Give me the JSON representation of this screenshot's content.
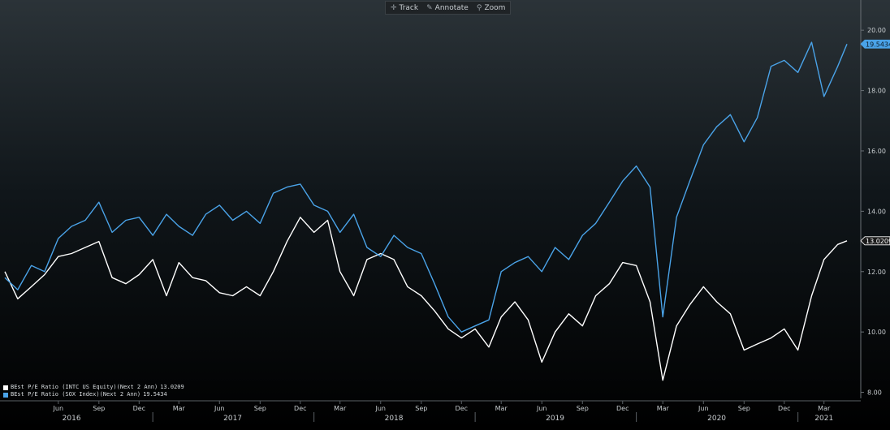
{
  "toolbar": {
    "track_label": "Track",
    "annotate_label": "Annotate",
    "zoom_label": "Zoom"
  },
  "colors": {
    "intc": "#ffffff",
    "sox": "#4aa3e8",
    "background_top": "#2b3338",
    "background_bottom": "#000000"
  },
  "chart_data": {
    "type": "line",
    "title": "",
    "xlabel": "",
    "ylabel": "",
    "ylim": [
      7.8,
      21.0
    ],
    "y_ticks": [
      "20.00",
      "18.00",
      "16.00",
      "14.00",
      "12.00",
      "10.00",
      "8.00"
    ],
    "x_month_ticks": [
      "Jun",
      "Sep",
      "Dec",
      "Mar",
      "Jun",
      "Sep",
      "Dec",
      "Mar",
      "Jun",
      "Sep",
      "Dec",
      "Mar",
      "Jun",
      "Sep",
      "Dec",
      "Mar",
      "Jun",
      "Sep",
      "Dec",
      "Mar"
    ],
    "x_year_labels": [
      "2016",
      "2017",
      "2018",
      "2019",
      "2020",
      "2021"
    ],
    "legend_position": "bottom-left",
    "grid": false,
    "series": [
      {
        "name": "BEst P/E Ratio (INTC US Equity)(Next 2 Ann)",
        "last_value": "13.0209",
        "color": "#ffffff",
        "points": [
          [
            "2016-02-01",
            12.0
          ],
          [
            "2016-03-01",
            11.1
          ],
          [
            "2016-04-01",
            11.5
          ],
          [
            "2016-05-01",
            11.9
          ],
          [
            "2016-06-01",
            12.5
          ],
          [
            "2016-07-01",
            12.6
          ],
          [
            "2016-08-01",
            12.8
          ],
          [
            "2016-09-01",
            13.0
          ],
          [
            "2016-10-01",
            11.8
          ],
          [
            "2016-11-01",
            11.6
          ],
          [
            "2016-12-01",
            11.9
          ],
          [
            "2017-01-01",
            12.4
          ],
          [
            "2017-02-01",
            11.2
          ],
          [
            "2017-03-01",
            12.3
          ],
          [
            "2017-04-01",
            11.8
          ],
          [
            "2017-05-01",
            11.7
          ],
          [
            "2017-06-01",
            11.3
          ],
          [
            "2017-07-01",
            11.2
          ],
          [
            "2017-08-01",
            11.5
          ],
          [
            "2017-09-01",
            11.2
          ],
          [
            "2017-10-01",
            12.0
          ],
          [
            "2017-11-01",
            13.0
          ],
          [
            "2017-12-01",
            13.8
          ],
          [
            "2018-01-01",
            13.3
          ],
          [
            "2018-02-01",
            13.7
          ],
          [
            "2018-03-01",
            12.0
          ],
          [
            "2018-04-01",
            11.2
          ],
          [
            "2018-05-01",
            12.4
          ],
          [
            "2018-06-01",
            12.6
          ],
          [
            "2018-07-01",
            12.4
          ],
          [
            "2018-08-01",
            11.5
          ],
          [
            "2018-09-01",
            11.2
          ],
          [
            "2018-10-01",
            10.7
          ],
          [
            "2018-11-01",
            10.1
          ],
          [
            "2018-12-01",
            9.8
          ],
          [
            "2019-01-01",
            10.1
          ],
          [
            "2019-02-01",
            9.5
          ],
          [
            "2019-03-01",
            10.5
          ],
          [
            "2019-04-01",
            11.0
          ],
          [
            "2019-05-01",
            10.4
          ],
          [
            "2019-06-01",
            9.0
          ],
          [
            "2019-07-01",
            10.0
          ],
          [
            "2019-08-01",
            10.6
          ],
          [
            "2019-09-01",
            10.2
          ],
          [
            "2019-10-01",
            11.2
          ],
          [
            "2019-11-01",
            11.6
          ],
          [
            "2019-12-01",
            12.3
          ],
          [
            "2020-01-01",
            12.2
          ],
          [
            "2020-02-01",
            11.0
          ],
          [
            "2020-03-01",
            8.4
          ],
          [
            "2020-04-01",
            10.2
          ],
          [
            "2020-05-01",
            10.9
          ],
          [
            "2020-06-01",
            11.5
          ],
          [
            "2020-07-01",
            11.0
          ],
          [
            "2020-08-01",
            10.6
          ],
          [
            "2020-09-01",
            9.4
          ],
          [
            "2020-10-01",
            9.6
          ],
          [
            "2020-11-01",
            9.8
          ],
          [
            "2020-12-01",
            10.1
          ],
          [
            "2021-01-01",
            9.4
          ],
          [
            "2021-02-01",
            11.2
          ],
          [
            "2021-03-01",
            12.4
          ],
          [
            "2021-04-01",
            12.9
          ],
          [
            "2021-04-22",
            13.02
          ]
        ]
      },
      {
        "name": "BEst P/E Ratio (SOX Index)(Next 2 Ann)",
        "last_value": "19.5434",
        "color": "#4aa3e8",
        "points": [
          [
            "2016-02-01",
            11.8
          ],
          [
            "2016-03-01",
            11.4
          ],
          [
            "2016-04-01",
            12.2
          ],
          [
            "2016-05-01",
            12.0
          ],
          [
            "2016-06-01",
            13.1
          ],
          [
            "2016-07-01",
            13.5
          ],
          [
            "2016-08-01",
            13.7
          ],
          [
            "2016-09-01",
            14.3
          ],
          [
            "2016-10-01",
            13.3
          ],
          [
            "2016-11-01",
            13.7
          ],
          [
            "2016-12-01",
            13.8
          ],
          [
            "2017-01-01",
            13.2
          ],
          [
            "2017-02-01",
            13.9
          ],
          [
            "2017-03-01",
            13.5
          ],
          [
            "2017-04-01",
            13.2
          ],
          [
            "2017-05-01",
            13.9
          ],
          [
            "2017-06-01",
            14.2
          ],
          [
            "2017-07-01",
            13.7
          ],
          [
            "2017-08-01",
            14.0
          ],
          [
            "2017-09-01",
            13.6
          ],
          [
            "2017-10-01",
            14.6
          ],
          [
            "2017-11-01",
            14.8
          ],
          [
            "2017-12-01",
            14.9
          ],
          [
            "2018-01-01",
            14.2
          ],
          [
            "2018-02-01",
            14.0
          ],
          [
            "2018-03-01",
            13.3
          ],
          [
            "2018-04-01",
            13.9
          ],
          [
            "2018-05-01",
            12.8
          ],
          [
            "2018-06-01",
            12.5
          ],
          [
            "2018-07-01",
            13.2
          ],
          [
            "2018-08-01",
            12.8
          ],
          [
            "2018-09-01",
            12.6
          ],
          [
            "2018-10-01",
            11.6
          ],
          [
            "2018-11-01",
            10.5
          ],
          [
            "2018-12-01",
            10.0
          ],
          [
            "2019-01-01",
            10.2
          ],
          [
            "2019-02-01",
            10.4
          ],
          [
            "2019-03-01",
            12.0
          ],
          [
            "2019-04-01",
            12.3
          ],
          [
            "2019-05-01",
            12.5
          ],
          [
            "2019-06-01",
            12.0
          ],
          [
            "2019-07-01",
            12.8
          ],
          [
            "2019-08-01",
            12.4
          ],
          [
            "2019-09-01",
            13.2
          ],
          [
            "2019-10-01",
            13.6
          ],
          [
            "2019-11-01",
            14.3
          ],
          [
            "2019-12-01",
            15.0
          ],
          [
            "2020-01-01",
            15.5
          ],
          [
            "2020-02-01",
            14.8
          ],
          [
            "2020-03-01",
            10.5
          ],
          [
            "2020-04-01",
            13.8
          ],
          [
            "2020-05-01",
            15.0
          ],
          [
            "2020-06-01",
            16.2
          ],
          [
            "2020-07-01",
            16.8
          ],
          [
            "2020-08-01",
            17.2
          ],
          [
            "2020-09-01",
            16.3
          ],
          [
            "2020-10-01",
            17.1
          ],
          [
            "2020-11-01",
            18.8
          ],
          [
            "2020-12-01",
            19.0
          ],
          [
            "2021-01-01",
            18.6
          ],
          [
            "2021-02-01",
            19.6
          ],
          [
            "2021-03-01",
            17.8
          ],
          [
            "2021-04-01",
            18.8
          ],
          [
            "2021-04-22",
            19.54
          ]
        ]
      }
    ]
  }
}
